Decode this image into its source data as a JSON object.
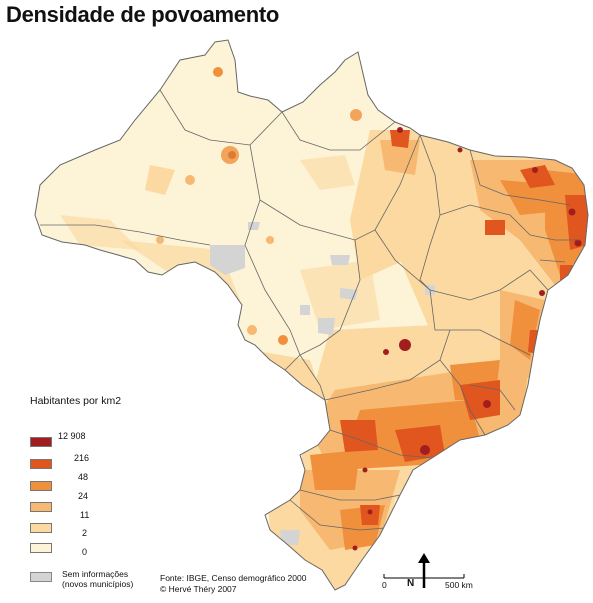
{
  "title": "Densidade de povoamento",
  "legend": {
    "title": "Habitantes por km2",
    "classes": [
      {
        "color": "#a21e1e",
        "bound": "12 908"
      },
      {
        "color": "#e0561e",
        "bound": "216"
      },
      {
        "color": "#f0903c",
        "bound": "48"
      },
      {
        "color": "#f7b872",
        "bound": "24"
      },
      {
        "color": "#fbd9a0",
        "bound": "11"
      },
      {
        "color": "#fdf3d6",
        "bound": "2"
      },
      {
        "bound": "0"
      }
    ],
    "no_info": {
      "line1": "Sem informações",
      "line2": "(novos municípios)",
      "color": "#d4d4d4"
    }
  },
  "source": {
    "line1": "Fonte: IBGE, Censo demográfico 2000",
    "line2": "© Hervé Théry 2007"
  },
  "scale": {
    "start": "0",
    "end": "500 km"
  },
  "north_label": "N",
  "map_colors": {
    "base": "#fdf3d6",
    "border": "#666666"
  }
}
